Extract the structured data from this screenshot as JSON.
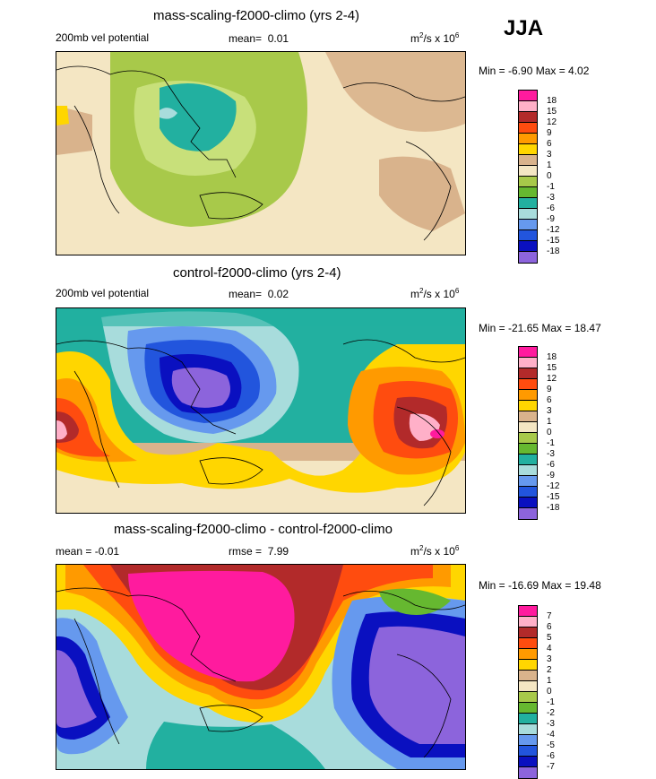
{
  "season": "JJA",
  "panels": [
    {
      "title": "mass-scaling-f2000-climo (yrs 2-4)",
      "left_label": "200mb vel potential",
      "mean_label": "mean=",
      "mean_value": "0.01",
      "units": "m",
      "units_sup": "2",
      "units_mid": "/s x 10",
      "units_exp": "6",
      "minmax": "Min = -6.90 Max =  4.02",
      "levels": [
        "18",
        "15",
        "12",
        "9",
        "6",
        "3",
        "1",
        "0",
        "-1",
        "-3",
        "-6",
        "-9",
        "-12",
        "-15",
        "-18"
      ]
    },
    {
      "title": "control-f2000-climo (yrs 2-4)",
      "left_label": "200mb vel potential",
      "mean_label": "mean=",
      "mean_value": "0.02",
      "units": "m",
      "units_sup": "2",
      "units_mid": "/s x 10",
      "units_exp": "6",
      "minmax": "Min = -21.65 Max = 18.47",
      "levels": [
        "18",
        "15",
        "12",
        "9",
        "6",
        "3",
        "1",
        "0",
        "-1",
        "-3",
        "-6",
        "-9",
        "-12",
        "-15",
        "-18"
      ]
    },
    {
      "title": "mass-scaling-f2000-climo - control-f2000-climo",
      "left_label": "mean = -0.01",
      "mean_label": "rmse =",
      "mean_value": "7.99",
      "units": "m",
      "units_sup": "2",
      "units_mid": "/s x 10",
      "units_exp": "6",
      "minmax": "Min = -16.69 Max = 19.48",
      "levels": [
        "7",
        "6",
        "5",
        "4",
        "3",
        "2",
        "1",
        "0",
        "-1",
        "-2",
        "-3",
        "-4",
        "-5",
        "-6",
        "-7"
      ]
    }
  ],
  "colors": {
    "palette": [
      "#ff1b9e",
      "#ffb0c8",
      "#b22a2a",
      "#ff4c0f",
      "#ff9a00",
      "#ffd600",
      "#d9b38c",
      "#f4e6c3",
      "#a8c94a",
      "#66b830",
      "#22b0a0",
      "#a8dcdc",
      "#6699ee",
      "#2255dd",
      "#0a10c0",
      "#8c64dc"
    ]
  }
}
